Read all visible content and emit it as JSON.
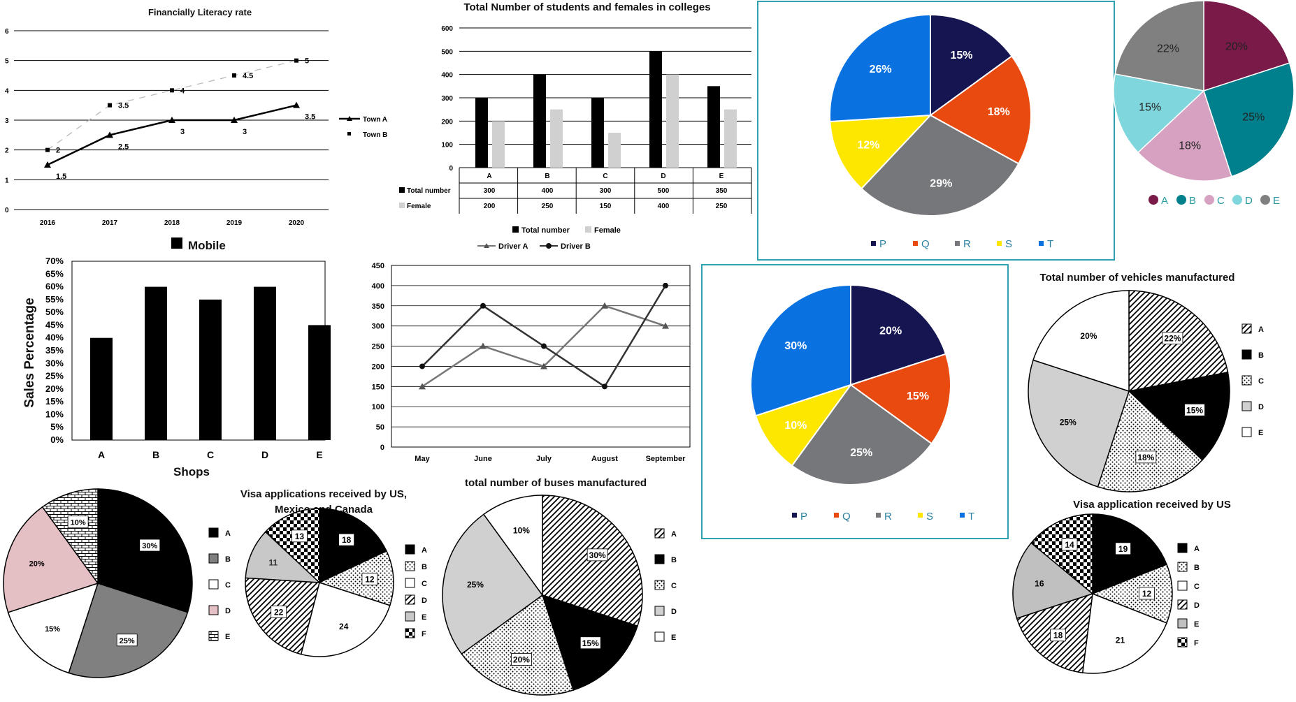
{
  "colors": {
    "black": "#000000",
    "darkgray": "#808080",
    "lightgray": "#d0d0d0",
    "pink": "#e4c0c4",
    "navy": "#151552",
    "orange": "#e84a0f",
    "gray": "#76777a",
    "yellow": "#fde600",
    "blue": "#0a72e0",
    "maroon": "#7a1a48",
    "teal": "#00808c",
    "mauve": "#d7a1c1",
    "cyan": "#7fd6dc",
    "dgray": "#808080",
    "frame": "#2fa2b0"
  },
  "chart_data": [
    {
      "id": "literacy",
      "type": "line",
      "title": "Financially Literacy rate",
      "categories": [
        "2016",
        "2017",
        "2018",
        "2019",
        "2020"
      ],
      "ylim": [
        0,
        6
      ],
      "yticks": [
        "0",
        "1",
        "2",
        "3",
        "4",
        "5",
        "6"
      ],
      "series": [
        {
          "name": "Town A",
          "values": [
            1.5,
            2.5,
            3,
            3,
            3.5
          ],
          "labels": [
            "1.5",
            "2.5",
            "3",
            "3",
            "3.5"
          ]
        },
        {
          "name": "Town B",
          "values": [
            2,
            3.5,
            4,
            4.5,
            5
          ],
          "labels": [
            "2",
            "3.5",
            "4",
            "4.5",
            "5"
          ]
        }
      ]
    },
    {
      "id": "colleges",
      "type": "bar",
      "title": "Total Number of students and females in colleges",
      "categories": [
        "A",
        "B",
        "C",
        "D",
        "E"
      ],
      "ylim": [
        0,
        600
      ],
      "yticks": [
        "0",
        "100",
        "200",
        "300",
        "400",
        "500",
        "600"
      ],
      "series": [
        {
          "name": "Total number",
          "values": [
            300,
            400,
            300,
            500,
            350
          ],
          "labels": [
            "300",
            "400",
            "300",
            "500",
            "350"
          ]
        },
        {
          "name": "Female",
          "values": [
            200,
            250,
            150,
            400,
            250
          ],
          "labels": [
            "200",
            "250",
            "150",
            "400",
            "250"
          ]
        }
      ]
    },
    {
      "id": "pie_pqrst_1",
      "type": "pie",
      "labels": [
        "P",
        "Q",
        "R",
        "S",
        "T"
      ],
      "values": [
        15,
        18,
        29,
        12,
        26
      ],
      "value_labels": [
        "15%",
        "18%",
        "29%",
        "12%",
        "26%"
      ]
    },
    {
      "id": "pie_abcde_color",
      "type": "pie",
      "labels": [
        "A",
        "B",
        "C",
        "D",
        "E"
      ],
      "values": [
        20,
        25,
        18,
        15,
        22
      ],
      "value_labels": [
        "20%",
        "25%",
        "18%",
        "15%",
        "22%"
      ]
    },
    {
      "id": "mobile",
      "type": "bar",
      "title": "Mobile",
      "xlabel": "Shops",
      "ylabel": "Sales Percentage",
      "categories": [
        "A",
        "B",
        "C",
        "D",
        "E"
      ],
      "values": [
        40,
        60,
        55,
        60,
        45
      ],
      "ylim": [
        0,
        70
      ],
      "yticks": [
        "0%",
        "5%",
        "10%",
        "15%",
        "20%",
        "25%",
        "30%",
        "35%",
        "40%",
        "45%",
        "50%",
        "55%",
        "60%",
        "65%",
        "70%"
      ]
    },
    {
      "id": "drivers",
      "type": "line",
      "categories": [
        "May",
        "June",
        "July",
        "August",
        "September"
      ],
      "ylim": [
        0,
        450
      ],
      "yticks": [
        "0",
        "50",
        "100",
        "150",
        "200",
        "250",
        "300",
        "350",
        "400",
        "450"
      ],
      "series": [
        {
          "name": "Driver A",
          "values": [
            150,
            250,
            200,
            350,
            300
          ]
        },
        {
          "name": "Driver B",
          "values": [
            200,
            350,
            250,
            150,
            400
          ]
        }
      ]
    },
    {
      "id": "pie_pqrst_2",
      "type": "pie",
      "labels": [
        "P",
        "Q",
        "R",
        "S",
        "T"
      ],
      "values": [
        20,
        15,
        25,
        10,
        30
      ],
      "value_labels": [
        "20%",
        "15%",
        "25%",
        "10%",
        "30%"
      ]
    },
    {
      "id": "vehicles",
      "type": "pie",
      "title": "Total number of vehicles manufactured",
      "labels": [
        "A",
        "B",
        "C",
        "D",
        "E"
      ],
      "values": [
        22,
        15,
        18,
        25,
        20
      ],
      "value_labels": [
        "22%",
        "15%",
        "18%",
        "25%",
        "20%"
      ]
    },
    {
      "id": "pie_patterns",
      "type": "pie",
      "labels": [
        "A",
        "B",
        "C",
        "D",
        "E"
      ],
      "values": [
        30,
        25,
        15,
        20,
        10
      ],
      "value_labels": [
        "30%",
        "25%",
        "15%",
        "20%",
        "10%"
      ]
    },
    {
      "id": "visa_us_mex_can",
      "type": "pie",
      "title": "Visa applications received by US, Mexico and Canada",
      "labels": [
        "A",
        "B",
        "C",
        "D",
        "E",
        "F"
      ],
      "values": [
        18,
        12,
        24,
        22,
        11,
        13
      ],
      "value_labels": [
        "18",
        "12",
        "24",
        "22",
        "11",
        "13"
      ]
    },
    {
      "id": "buses",
      "type": "pie",
      "title": "total number of buses manufactured",
      "labels": [
        "A",
        "B",
        "C",
        "D",
        "E"
      ],
      "values": [
        30,
        15,
        20,
        25,
        10
      ],
      "value_labels": [
        "30%",
        "15%",
        "20%",
        "25%",
        "10%"
      ]
    },
    {
      "id": "visa_us",
      "type": "pie",
      "title": "Visa application received by US",
      "labels": [
        "A",
        "B",
        "C",
        "D",
        "E",
        "F"
      ],
      "values": [
        19,
        12,
        21,
        18,
        16,
        14
      ],
      "value_labels": [
        "19",
        "12",
        "21",
        "18",
        "16",
        "14"
      ]
    }
  ]
}
